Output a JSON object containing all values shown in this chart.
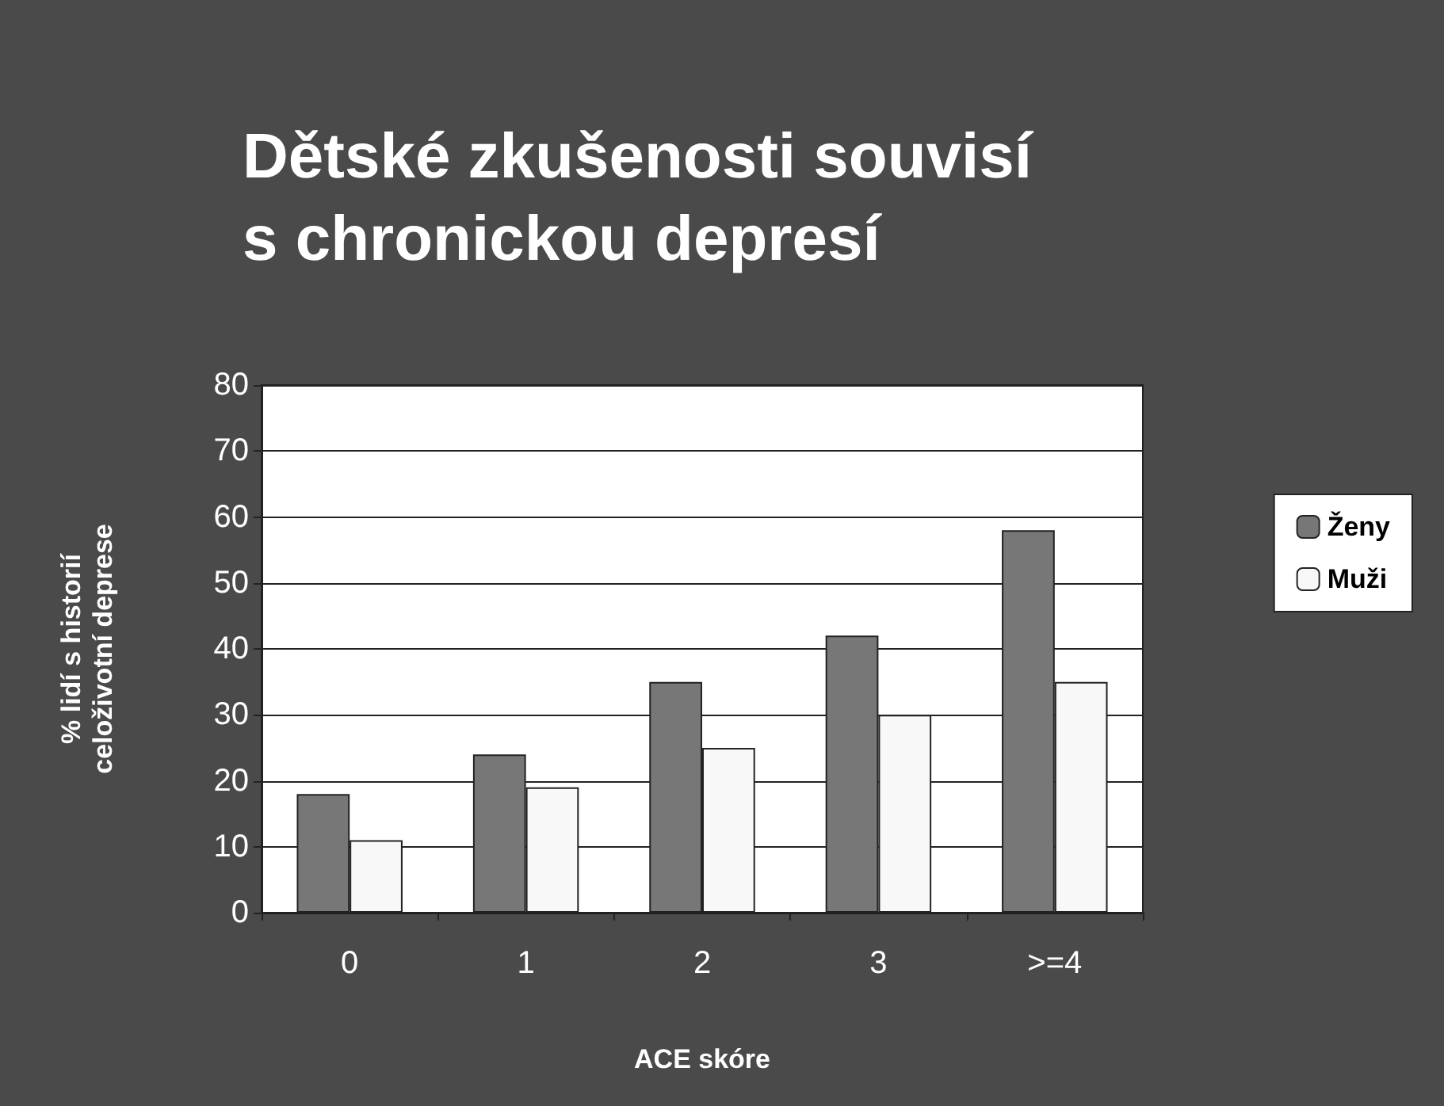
{
  "chart_data": {
    "type": "bar",
    "title": "Dětské zkušenosti souvisí\ns chronickou depresí",
    "xlabel": "ACE skóre",
    "ylabel": "% lidí s historií\nceloživotní deprese",
    "categories": [
      "0",
      "1",
      "2",
      "3",
      ">=4"
    ],
    "series": [
      {
        "name": "Ženy",
        "color": "#777777",
        "values": [
          18,
          24,
          35,
          42,
          58
        ]
      },
      {
        "name": "Muži",
        "color": "#f8f8f8",
        "values": [
          11,
          19,
          25,
          30,
          35
        ]
      }
    ],
    "ylim": [
      0,
      80
    ],
    "yticks": [
      0,
      10,
      20,
      30,
      40,
      50,
      60,
      70,
      80
    ],
    "grid": "y",
    "legend": "right"
  }
}
